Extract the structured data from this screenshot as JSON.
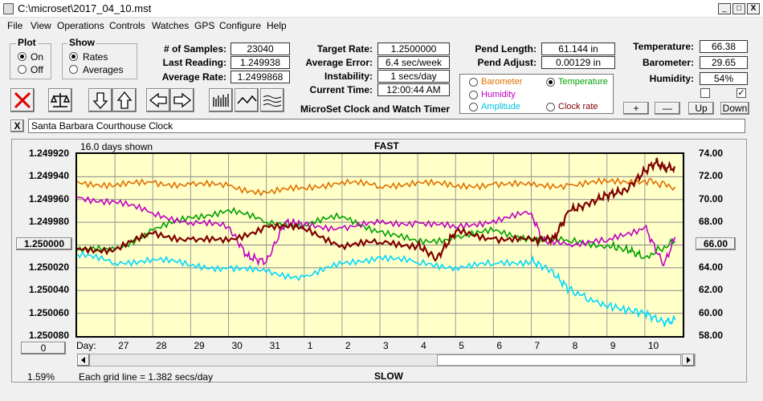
{
  "window": {
    "title": "C:\\microset\\2017_04_10.mst",
    "controls": [
      "_",
      "□",
      "X"
    ]
  },
  "menu": [
    "File",
    "View",
    "Operations",
    "Controls",
    "Watches",
    "GPS",
    "Configure",
    "Help"
  ],
  "plot_group": {
    "title": "Plot",
    "options": [
      "On",
      "Off"
    ],
    "selected": "On"
  },
  "show_group": {
    "title": "Show",
    "options": [
      "Rates",
      "Averages"
    ],
    "selected": "Rates"
  },
  "stats": {
    "samples_label": "# of Samples:",
    "samples": "23040",
    "last_label": "Last Reading:",
    "last": "1.249938",
    "avg_label": "Average Rate:",
    "avg": "1.2499868"
  },
  "rates": {
    "target_label": "Target Rate:",
    "target": "1.2500000",
    "error_label": "Average Error:",
    "error": "6.4 sec/week",
    "instab_label": "Instability:",
    "instab": "1 secs/day",
    "time_label": "Current Time:",
    "time": "12:00:44 AM"
  },
  "pend": {
    "length_label": "Pend Length:",
    "length": "61.144 in",
    "adjust_label": "Pend Adjust:",
    "adjust": "0.00129 in"
  },
  "env": {
    "temp_label": "Temperature:",
    "temp": "66.38",
    "baro_label": "Barometer:",
    "baro": "29.65",
    "hum_label": "Humidity:",
    "hum": "54%"
  },
  "app_name": "MicroSet Clock and Watch Timer",
  "trace_options": [
    {
      "label": "Barometer",
      "color": "#e07000",
      "selected": false
    },
    {
      "label": "Temperature",
      "color": "#00a000",
      "selected": true
    },
    {
      "label": "Humidity",
      "color": "#c000c0",
      "selected": false
    },
    {
      "label": "Clock rate",
      "color": "#800000",
      "selected": false
    },
    {
      "label": "Amplitude",
      "color": "#00c0e0",
      "selected": false
    }
  ],
  "small_buttons": {
    "plus": "+",
    "minus": "—",
    "up": "Up",
    "down": "Down"
  },
  "env_checks": [
    false,
    true
  ],
  "clock_name": "Santa Barbara Courthouse Clock",
  "clear_button": "X",
  "chart_labels": {
    "days_shown": "16.0 days shown",
    "top": "FAST",
    "bottom": "SLOW",
    "gridline": "Each grid line = 1.382 secs/day",
    "left_button": "1.250000",
    "right_button": "66.00",
    "zero_button": "0",
    "percent": "1.59%",
    "day_prefix": "Day:"
  },
  "chart_data": {
    "type": "line",
    "y_left_ticks": [
      "1.249920",
      "1.249940",
      "1.249960",
      "1.249980",
      "1.250000",
      "1.250020",
      "1.250040",
      "1.250060",
      "1.250080"
    ],
    "y_right_ticks": [
      "74.00",
      "72.00",
      "70.00",
      "68.00",
      "66.00",
      "64.00",
      "62.00",
      "60.00",
      "58.00"
    ],
    "x_ticks": [
      "27",
      "28",
      "29",
      "30",
      "31",
      "1",
      "2",
      "3",
      "4",
      "5",
      "6",
      "7",
      "8",
      "9",
      "10"
    ],
    "x_range": [
      26.0,
      42.0
    ],
    "y_right_range": [
      58,
      74
    ],
    "series": [
      {
        "color": "#e07000",
        "x": [
          26,
          27,
          28,
          29,
          30,
          31,
          32,
          33,
          34,
          35,
          36,
          37,
          38,
          39,
          40,
          41,
          41.8
        ],
        "y": [
          71.6,
          71.2,
          71.5,
          71.3,
          71.2,
          70.6,
          71.0,
          71.6,
          71.1,
          71.6,
          71.1,
          71.4,
          71.2,
          71.3,
          71.5,
          71.7,
          71.1
        ]
      },
      {
        "color": "#00a000",
        "x": [
          26,
          27,
          28,
          29,
          30,
          31,
          32,
          33,
          34,
          35,
          36,
          37,
          38,
          39,
          40,
          40.6,
          41,
          41.8
        ],
        "y": [
          65.5,
          65.6,
          67.3,
          68.4,
          69.1,
          68.0,
          67.8,
          68.5,
          67.2,
          66.2,
          66.7,
          67.2,
          66.6,
          66.3,
          66.0,
          65.5,
          64.9,
          66.3
        ]
      },
      {
        "color": "#c000c0",
        "x": [
          26,
          27,
          28,
          29,
          30,
          30.5,
          31,
          31.5,
          32,
          33,
          34,
          35,
          36,
          37,
          38,
          38.3,
          39,
          40,
          41,
          41.5,
          41.8
        ],
        "y": [
          70.2,
          69.8,
          68.8,
          68.0,
          67.6,
          65.0,
          64.5,
          68.0,
          67.8,
          67.5,
          67.9,
          68.0,
          67.5,
          68.2,
          68.8,
          66.4,
          66.1,
          66.3,
          67.6,
          64.2,
          66.7
        ]
      },
      {
        "color": "#00d8ff",
        "x": [
          26,
          27,
          28,
          29,
          30,
          31,
          32,
          33,
          34,
          35,
          36,
          37,
          38,
          38.5,
          39,
          39.8,
          40.4,
          41,
          41.5,
          41.8
        ],
        "y": [
          65.2,
          64.4,
          64.8,
          64.2,
          64.0,
          63.6,
          63.2,
          64.3,
          65.0,
          64.4,
          64.1,
          64.3,
          64.6,
          63.8,
          62.1,
          60.8,
          60.4,
          60.0,
          59.2,
          59.4
        ]
      },
      {
        "color": "#800000",
        "x": [
          26,
          27,
          28,
          29,
          30,
          31,
          32,
          33,
          34,
          35,
          35.5,
          36,
          37,
          38,
          38.6,
          39,
          39.5,
          40,
          40.5,
          41,
          41.3,
          41.5,
          41.8
        ],
        "y": [
          65.7,
          65.6,
          67.0,
          66.5,
          66.3,
          67.7,
          67.4,
          66.0,
          66.2,
          66.0,
          64.8,
          67.2,
          66.6,
          66.4,
          66.6,
          69.0,
          69.6,
          70.4,
          70.8,
          72.5,
          73.3,
          72.8,
          72.8
        ]
      }
    ]
  }
}
